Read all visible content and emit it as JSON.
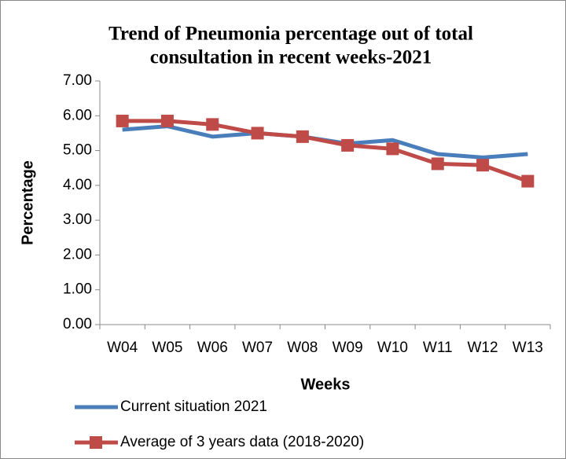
{
  "chart_data": {
    "type": "line",
    "title": "Trend of Pneumonia percentage out of total consultation in recent weeks-2021",
    "title_lines": [
      "Trend of Pneumonia percentage out of total",
      "consultation in recent weeks-2021"
    ],
    "xlabel": "Weeks",
    "ylabel": "Percentage",
    "categories": [
      "W04",
      "W05",
      "W06",
      "W07",
      "W08",
      "W09",
      "W10",
      "W11",
      "W12",
      "W13"
    ],
    "series": [
      {
        "name": "Current situation 2021",
        "color": "#4a7ebb",
        "marker": "none",
        "values": [
          5.6,
          5.7,
          5.4,
          5.5,
          5.4,
          5.2,
          5.3,
          4.9,
          4.8,
          4.9
        ]
      },
      {
        "name": "Average of 3 years data (2018-2020)",
        "color": "#be4b48",
        "marker": "square",
        "values": [
          5.85,
          5.85,
          5.75,
          5.5,
          5.4,
          5.15,
          5.05,
          4.62,
          4.58,
          4.12
        ]
      }
    ],
    "ylim": [
      0,
      7
    ],
    "yticks": [
      {
        "value": 0,
        "label": "0.00"
      },
      {
        "value": 1,
        "label": "1.00"
      },
      {
        "value": 2,
        "label": "2.00"
      },
      {
        "value": 3,
        "label": "3.00"
      },
      {
        "value": 4,
        "label": "4.00"
      },
      {
        "value": 5,
        "label": "5.00"
      },
      {
        "value": 6,
        "label": "6.00"
      },
      {
        "value": 7,
        "label": "7.00"
      }
    ],
    "grid": false,
    "legend": "bottom"
  }
}
